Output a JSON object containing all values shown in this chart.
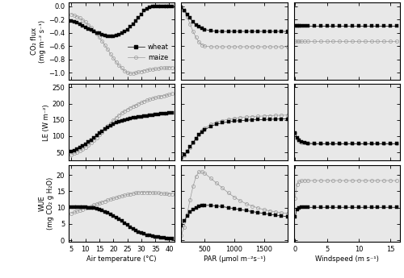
{
  "temp_x": [
    5,
    6,
    7,
    8,
    9,
    10,
    11,
    12,
    13,
    14,
    15,
    16,
    17,
    18,
    19,
    20,
    21,
    22,
    23,
    24,
    25,
    26,
    27,
    28,
    29,
    30,
    31,
    32,
    33,
    34,
    35,
    36,
    37,
    38,
    39,
    40,
    41
  ],
  "par_x": [
    100,
    150,
    200,
    250,
    300,
    350,
    400,
    450,
    500,
    600,
    700,
    800,
    900,
    1000,
    1100,
    1200,
    1300,
    1400,
    1500,
    1600,
    1700,
    1800,
    1900
  ],
  "wind_x": [
    0.0,
    0.3,
    0.6,
    1.0,
    1.5,
    2.0,
    3.0,
    4.0,
    5.0,
    6.0,
    7.0,
    8.0,
    9.0,
    10.0,
    11.0,
    12.0,
    13.0,
    14.0,
    15.0,
    16.0
  ],
  "co2_temp_wheat": [
    -0.22,
    -0.23,
    -0.25,
    -0.27,
    -0.29,
    -0.32,
    -0.34,
    -0.36,
    -0.38,
    -0.4,
    -0.41,
    -0.43,
    -0.44,
    -0.45,
    -0.45,
    -0.45,
    -0.44,
    -0.43,
    -0.41,
    -0.38,
    -0.35,
    -0.31,
    -0.27,
    -0.22,
    -0.17,
    -0.12,
    -0.07,
    -0.04,
    -0.02,
    -0.01,
    0.0,
    0.0,
    0.0,
    0.0,
    0.0,
    0.0,
    0.0
  ],
  "co2_temp_maize": [
    -0.12,
    -0.14,
    -0.16,
    -0.18,
    -0.21,
    -0.24,
    -0.28,
    -0.32,
    -0.37,
    -0.42,
    -0.47,
    -0.53,
    -0.59,
    -0.65,
    -0.72,
    -0.78,
    -0.84,
    -0.89,
    -0.93,
    -0.97,
    -1.0,
    -1.01,
    -1.01,
    -1.0,
    -0.99,
    -0.98,
    -0.97,
    -0.96,
    -0.95,
    -0.95,
    -0.94,
    -0.94,
    -0.93,
    -0.93,
    -0.93,
    -0.92,
    -0.92
  ],
  "co2_par_wheat": [
    -0.02,
    -0.06,
    -0.12,
    -0.18,
    -0.24,
    -0.28,
    -0.31,
    -0.33,
    -0.35,
    -0.37,
    -0.38,
    -0.38,
    -0.38,
    -0.38,
    -0.38,
    -0.38,
    -0.38,
    -0.38,
    -0.38,
    -0.38,
    -0.38,
    -0.38,
    -0.38
  ],
  "co2_par_maize": [
    -0.02,
    -0.07,
    -0.16,
    -0.27,
    -0.38,
    -0.47,
    -0.54,
    -0.58,
    -0.6,
    -0.61,
    -0.61,
    -0.61,
    -0.61,
    -0.61,
    -0.61,
    -0.61,
    -0.61,
    -0.61,
    -0.61,
    -0.61,
    -0.61,
    -0.61,
    -0.61
  ],
  "co2_wind_wheat": [
    -0.3,
    -0.3,
    -0.3,
    -0.3,
    -0.3,
    -0.3,
    -0.3,
    -0.3,
    -0.3,
    -0.3,
    -0.3,
    -0.3,
    -0.3,
    -0.3,
    -0.3,
    -0.3,
    -0.3,
    -0.3,
    -0.3,
    -0.3
  ],
  "co2_wind_maize": [
    -0.52,
    -0.52,
    -0.52,
    -0.52,
    -0.52,
    -0.52,
    -0.52,
    -0.52,
    -0.52,
    -0.52,
    -0.52,
    -0.52,
    -0.52,
    -0.52,
    -0.52,
    -0.52,
    -0.52,
    -0.52,
    -0.52,
    -0.52
  ],
  "le_temp_wheat": [
    52,
    56,
    60,
    65,
    70,
    76,
    82,
    88,
    95,
    102,
    109,
    116,
    122,
    128,
    133,
    137,
    141,
    144,
    147,
    150,
    152,
    154,
    156,
    157,
    159,
    160,
    162,
    163,
    164,
    165,
    166,
    167,
    168,
    169,
    170,
    171,
    172
  ],
  "le_temp_maize": [
    43,
    47,
    51,
    55,
    60,
    66,
    72,
    79,
    87,
    95,
    104,
    113,
    122,
    131,
    140,
    149,
    157,
    165,
    171,
    177,
    182,
    187,
    191,
    195,
    199,
    203,
    207,
    210,
    213,
    216,
    218,
    220,
    222,
    224,
    226,
    228,
    230
  ],
  "le_par_wheat": [
    33,
    42,
    54,
    67,
    80,
    93,
    104,
    113,
    120,
    130,
    137,
    141,
    144,
    146,
    148,
    149,
    150,
    151,
    151,
    152,
    152,
    153,
    153
  ],
  "le_par_maize": [
    33,
    41,
    52,
    65,
    79,
    93,
    106,
    117,
    125,
    136,
    143,
    148,
    152,
    155,
    157,
    159,
    160,
    161,
    162,
    163,
    164,
    164,
    165
  ],
  "le_wind_wheat": [
    110,
    95,
    88,
    83,
    80,
    78,
    77,
    77,
    77,
    77,
    77,
    77,
    77,
    77,
    77,
    77,
    77,
    77,
    77,
    77
  ],
  "le_wind_maize": [
    110,
    92,
    85,
    81,
    79,
    78,
    77,
    77,
    77,
    77,
    77,
    77,
    77,
    77,
    77,
    77,
    77,
    77,
    77,
    77
  ],
  "wue_temp_wheat": [
    10.2,
    10.2,
    10.2,
    10.2,
    10.1,
    10.1,
    10.0,
    9.9,
    9.8,
    9.6,
    9.4,
    9.1,
    8.8,
    8.4,
    8.0,
    7.5,
    7.0,
    6.5,
    5.9,
    5.3,
    4.7,
    4.1,
    3.6,
    3.1,
    2.6,
    2.2,
    1.9,
    1.6,
    1.4,
    1.2,
    1.0,
    0.9,
    0.8,
    0.7,
    0.6,
    0.6,
    0.5
  ],
  "wue_temp_maize": [
    8.3,
    8.6,
    8.9,
    9.2,
    9.5,
    9.9,
    10.2,
    10.5,
    10.8,
    11.1,
    11.4,
    11.7,
    12.0,
    12.3,
    12.6,
    12.8,
    13.1,
    13.3,
    13.6,
    13.8,
    14.0,
    14.2,
    14.3,
    14.5,
    14.6,
    14.7,
    14.7,
    14.7,
    14.7,
    14.6,
    14.5,
    14.5,
    14.4,
    14.3,
    14.3,
    14.2,
    14.2
  ],
  "wue_par_wheat": [
    4.5,
    6.0,
    7.5,
    8.7,
    9.5,
    10.0,
    10.3,
    10.6,
    10.7,
    10.7,
    10.5,
    10.3,
    10.0,
    9.7,
    9.4,
    9.1,
    8.8,
    8.5,
    8.2,
    7.9,
    7.7,
    7.5,
    7.2
  ],
  "wue_par_maize": [
    1.5,
    4.0,
    8.0,
    12.5,
    16.5,
    19.5,
    21.0,
    21.0,
    20.5,
    19.0,
    17.5,
    16.0,
    14.5,
    13.2,
    12.1,
    11.2,
    10.5,
    9.9,
    9.4,
    9.0,
    8.7,
    8.4,
    8.2
  ],
  "wue_wind_wheat": [
    7.2,
    9.5,
    10.0,
    10.1,
    10.1,
    10.1,
    10.1,
    10.1,
    10.1,
    10.1,
    10.1,
    10.1,
    10.1,
    10.1,
    10.1,
    10.1,
    10.1,
    10.1,
    10.1,
    10.1
  ],
  "wue_wind_maize": [
    13.0,
    17.0,
    18.0,
    18.2,
    18.3,
    18.3,
    18.3,
    18.3,
    18.3,
    18.3,
    18.3,
    18.3,
    18.3,
    18.3,
    18.3,
    18.3,
    18.3,
    18.3,
    18.3,
    18.3
  ],
  "wheat_color": "#000000",
  "maize_color": "#999999",
  "wheat_marker": "s",
  "maize_marker": "o",
  "marker_size": 2.5,
  "linewidth": 0.0,
  "legend_labels": [
    "wheat",
    "maize"
  ],
  "co2_ylim": [
    -1.1,
    0.05
  ],
  "co2_yticks": [
    0.0,
    -0.2,
    -0.4,
    -0.6,
    -0.8,
    -1.0
  ],
  "le_ylim": [
    25,
    260
  ],
  "le_yticks": [
    50,
    100,
    150,
    200,
    250
  ],
  "wue_ylim": [
    -0.5,
    23
  ],
  "wue_yticks": [
    0,
    5,
    10,
    15,
    20
  ],
  "temp_xlim": [
    4,
    42
  ],
  "temp_xticks": [
    5,
    10,
    15,
    20,
    25,
    30,
    35,
    40
  ],
  "par_xlim": [
    100,
    1900
  ],
  "par_xticks": [
    500,
    1000,
    1500
  ],
  "wind_xlim": [
    -0.2,
    16.5
  ],
  "wind_xticks": [
    0,
    5,
    10,
    15
  ],
  "col1_xlabel": "Air temperature (°C)",
  "col2_xlabel": "PAR (μmol m⁻²s⁻¹)",
  "col3_xlabel": "Windspeed (m s⁻¹)",
  "row1_ylabel": "CO₂ flux\n(mg m⁻² s⁻¹)",
  "row2_ylabel": "LE (W m⁻²)",
  "row3_ylabel": "WUE\n(mg CO₂ g H₂O)",
  "bg_color": "#e8e8e8",
  "fig_bg": "#ffffff"
}
